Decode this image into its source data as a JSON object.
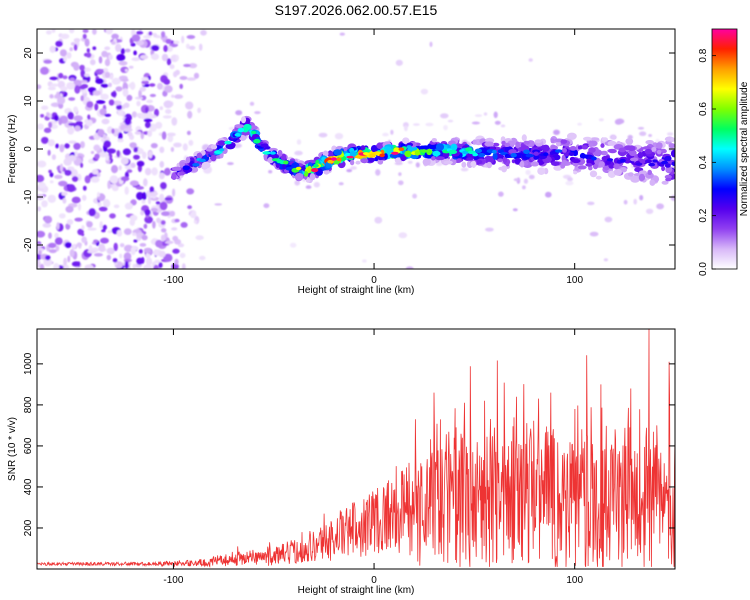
{
  "title": "S197.2026.062.00.57.E15",
  "chart_data": [
    {
      "type": "heatmap",
      "name": "spectrogram",
      "xlabel": "Height of straight line (km)",
      "ylabel": "Frequency (Hz)",
      "xlim": [
        -168,
        150
      ],
      "ylim": [
        -25,
        25
      ],
      "xticks": [
        -100,
        0,
        100
      ],
      "yticks": [
        -20,
        -10,
        0,
        10,
        20
      ],
      "colorbar": {
        "label": "Normalized spectral amplitude",
        "range": [
          0,
          0.9
        ],
        "ticks": [
          0.0,
          0.2,
          0.4,
          0.6,
          0.8
        ],
        "colors": [
          "#ffffff",
          "#d8b8f8",
          "#9040f0",
          "#5500ee",
          "#0000ff",
          "#0090ff",
          "#00ffff",
          "#00ff60",
          "#80ff00",
          "#ffff00",
          "#ffa000",
          "#ff2000",
          "#ff00a0"
        ]
      },
      "ridge": {
        "x": [
          -100,
          -90,
          -80,
          -70,
          -63,
          -55,
          -45,
          -35,
          -30,
          -20,
          -10,
          0,
          10,
          20,
          40,
          60,
          80,
          100,
          120,
          140,
          150
        ],
        "freq": [
          -5,
          -3,
          -1,
          2,
          5,
          0,
          -3,
          -5,
          -4,
          -2,
          -1,
          -1,
          -0.5,
          -0.5,
          -0.5,
          -1,
          -1,
          -1,
          -2,
          -3,
          -3
        ],
        "amplitude": [
          0.25,
          0.35,
          0.4,
          0.45,
          0.55,
          0.45,
          0.55,
          0.6,
          0.75,
          0.85,
          0.8,
          0.75,
          0.85,
          0.6,
          0.5,
          0.35,
          0.3,
          0.3,
          0.25,
          0.25,
          0.3
        ]
      },
      "noise_region_x": [
        -168,
        -82
      ]
    },
    {
      "type": "line",
      "name": "snr",
      "xlabel": "Height of straight line (km)",
      "ylabel": "SNR (10 * v/v)",
      "xlim": [
        -168,
        150
      ],
      "ylim": [
        0,
        1170
      ],
      "xticks": [
        -100,
        0,
        100
      ],
      "yticks": [
        200,
        400,
        600,
        800,
        1000
      ],
      "color": "#ee3333",
      "envelope": {
        "x": [
          -168,
          -110,
          -85,
          -70,
          -55,
          -45,
          -35,
          -25,
          -15,
          -5,
          5,
          15,
          25,
          35,
          50,
          70,
          90,
          110,
          130,
          150
        ],
        "baseline": [
          25,
          25,
          30,
          50,
          60,
          70,
          100,
          130,
          180,
          230,
          260,
          300,
          320,
          330,
          340,
          350,
          340,
          330,
          330,
          320
        ],
        "spread": [
          8,
          10,
          20,
          35,
          45,
          55,
          80,
          100,
          130,
          170,
          200,
          230,
          320,
          360,
          380,
          400,
          400,
          380,
          380,
          360
        ]
      },
      "peaks": [
        [
          -80,
          60
        ],
        [
          -68,
          110
        ],
        [
          -52,
          130
        ],
        [
          -36,
          180
        ],
        [
          -25,
          270
        ],
        [
          -5,
          340
        ],
        [
          14,
          410
        ],
        [
          30,
          860
        ],
        [
          45,
          810
        ],
        [
          55,
          820
        ],
        [
          71,
          840
        ],
        [
          88,
          860
        ],
        [
          100,
          780
        ],
        [
          113,
          900
        ],
        [
          128,
          880
        ],
        [
          137,
          1170
        ],
        [
          141,
          700
        ],
        [
          147,
          1010
        ]
      ]
    }
  ]
}
